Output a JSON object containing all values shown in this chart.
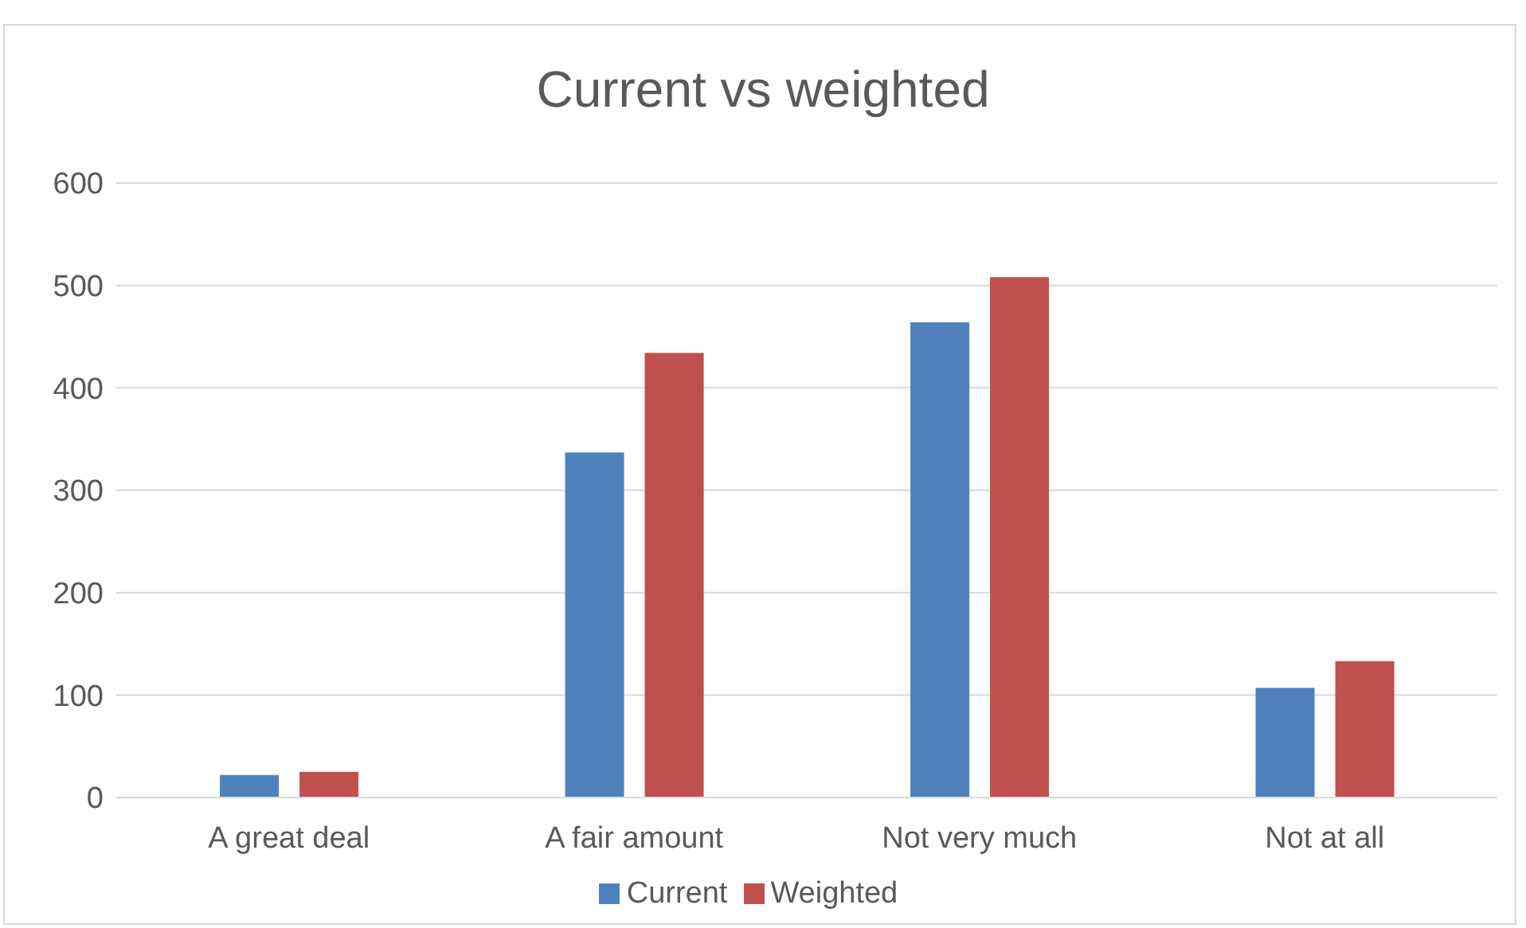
{
  "chart_data": {
    "type": "bar",
    "title": "Current vs weighted",
    "categories": [
      "A great deal",
      "A fair amount",
      "Not very much",
      "Not at all"
    ],
    "series": [
      {
        "name": "Current",
        "color": "#4f81bd",
        "values": [
          22,
          337,
          464,
          107
        ]
      },
      {
        "name": "Weighted",
        "color": "#c0504d",
        "values": [
          25,
          434,
          508,
          133
        ]
      }
    ],
    "ylim": [
      0,
      600
    ],
    "yticks": [
      0,
      100,
      200,
      300,
      400,
      500,
      600
    ],
    "grid": "y",
    "legend": "bottom"
  }
}
